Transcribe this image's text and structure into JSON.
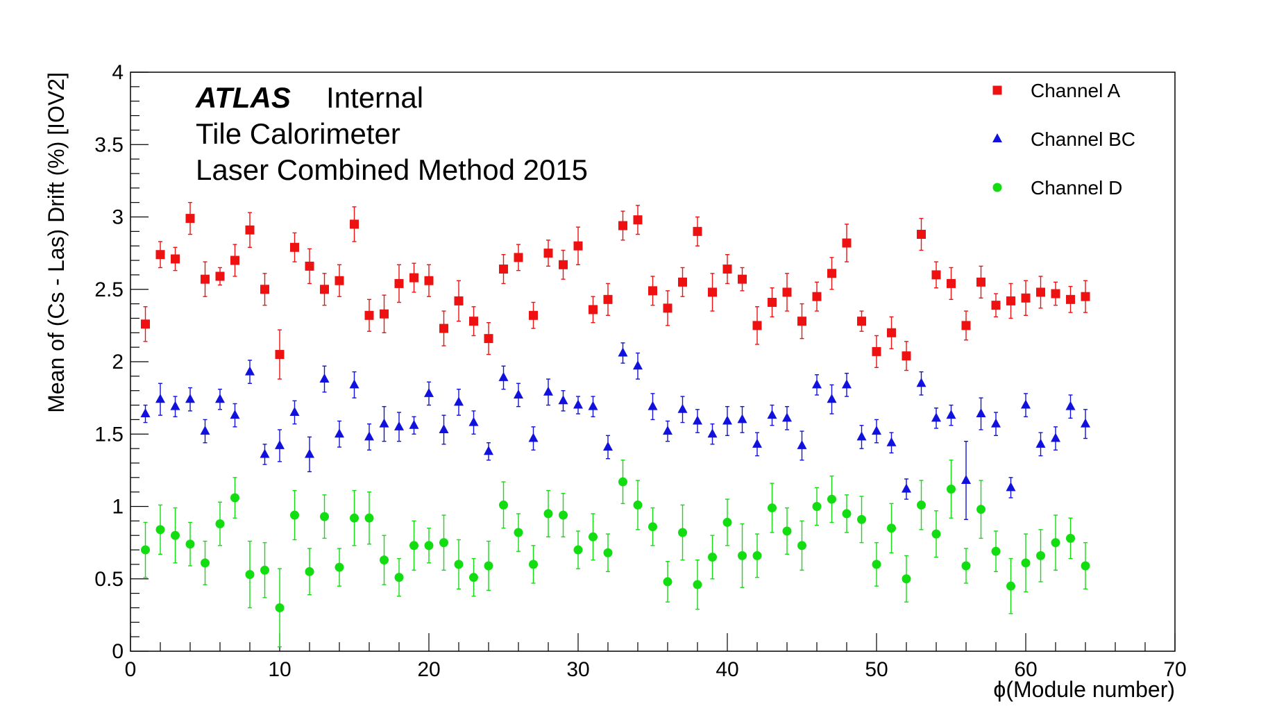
{
  "chart_data": {
    "type": "scatter",
    "title": "",
    "xlabel": "ϕ(Module number)",
    "ylabel": "Mean of (Cs - Las) Drift (%) [IOV2]",
    "xlim": [
      0,
      70
    ],
    "ylim": [
      0,
      4
    ],
    "x_ticks": [
      "0",
      "10",
      "20",
      "30",
      "40",
      "50",
      "60",
      "70"
    ],
    "y_ticks": [
      "0",
      "0.5",
      "1",
      "1.5",
      "2",
      "2.5",
      "3",
      "3.5",
      "4"
    ],
    "annotations": {
      "experiment": "ATLAS",
      "status": "Internal",
      "line2": "Tile Calorimeter",
      "line3": "Laser Combined Method 2015"
    },
    "legend_position": "top-right",
    "x": [
      1,
      2,
      3,
      4,
      5,
      6,
      7,
      8,
      9,
      10,
      11,
      12,
      13,
      14,
      15,
      16,
      17,
      18,
      19,
      20,
      21,
      22,
      23,
      24,
      25,
      26,
      27,
      28,
      29,
      30,
      31,
      32,
      33,
      34,
      35,
      36,
      37,
      38,
      39,
      40,
      41,
      42,
      43,
      44,
      45,
      46,
      47,
      48,
      49,
      50,
      51,
      52,
      53,
      54,
      55,
      56,
      57,
      58,
      59,
      60,
      61,
      62,
      63,
      64
    ],
    "series": [
      {
        "name": "Channel A",
        "color": "#ee1111",
        "marker": "square",
        "values": [
          2.26,
          2.74,
          2.71,
          2.99,
          2.57,
          2.59,
          2.7,
          2.91,
          2.5,
          2.05,
          2.79,
          2.66,
          2.5,
          2.56,
          2.95,
          2.32,
          2.33,
          2.54,
          2.58,
          2.56,
          2.23,
          2.42,
          2.28,
          2.16,
          2.64,
          2.72,
          2.32,
          2.75,
          2.67,
          2.8,
          2.36,
          2.43,
          2.94,
          2.98,
          2.49,
          2.37,
          2.55,
          2.9,
          2.48,
          2.64,
          2.57,
          2.25,
          2.41,
          2.48,
          2.28,
          2.45,
          2.61,
          2.82,
          2.28,
          2.07,
          2.2,
          2.04,
          2.88,
          2.6,
          2.54,
          2.25,
          2.55,
          2.39,
          2.42,
          2.44,
          2.48,
          2.47,
          2.43,
          2.45
        ],
        "errors": [
          0.12,
          0.09,
          0.08,
          0.11,
          0.12,
          0.06,
          0.11,
          0.12,
          0.11,
          0.17,
          0.1,
          0.12,
          0.11,
          0.11,
          0.12,
          0.11,
          0.13,
          0.13,
          0.1,
          0.11,
          0.12,
          0.14,
          0.1,
          0.11,
          0.1,
          0.09,
          0.09,
          0.09,
          0.1,
          0.13,
          0.09,
          0.11,
          0.1,
          0.1,
          0.1,
          0.12,
          0.1,
          0.1,
          0.13,
          0.1,
          0.08,
          0.13,
          0.1,
          0.13,
          0.12,
          0.1,
          0.11,
          0.13,
          0.07,
          0.11,
          0.11,
          0.1,
          0.11,
          0.09,
          0.11,
          0.1,
          0.11,
          0.08,
          0.12,
          0.12,
          0.11,
          0.08,
          0.09,
          0.11
        ]
      },
      {
        "name": "Channel BC",
        "color": "#1111dd",
        "marker": "triangle",
        "values": [
          1.64,
          1.74,
          1.69,
          1.74,
          1.52,
          1.74,
          1.63,
          1.93,
          1.36,
          1.42,
          1.65,
          1.36,
          1.88,
          1.5,
          1.84,
          1.48,
          1.57,
          1.55,
          1.56,
          1.78,
          1.53,
          1.72,
          1.58,
          1.38,
          1.89,
          1.77,
          1.47,
          1.79,
          1.73,
          1.7,
          1.69,
          1.41,
          2.06,
          1.97,
          1.69,
          1.52,
          1.67,
          1.59,
          1.5,
          1.59,
          1.6,
          1.43,
          1.63,
          1.61,
          1.42,
          1.84,
          1.74,
          1.84,
          1.48,
          1.52,
          1.44,
          1.12,
          1.85,
          1.61,
          1.63,
          1.18,
          1.64,
          1.57,
          1.13,
          1.7,
          1.43,
          1.47,
          1.69,
          1.57
        ],
        "errors": [
          0.06,
          0.11,
          0.07,
          0.08,
          0.08,
          0.07,
          0.08,
          0.08,
          0.07,
          0.11,
          0.08,
          0.12,
          0.09,
          0.09,
          0.09,
          0.09,
          0.12,
          0.1,
          0.06,
          0.08,
          0.1,
          0.09,
          0.08,
          0.06,
          0.08,
          0.08,
          0.08,
          0.09,
          0.07,
          0.06,
          0.07,
          0.08,
          0.07,
          0.09,
          0.09,
          0.07,
          0.09,
          0.08,
          0.07,
          0.1,
          0.09,
          0.08,
          0.07,
          0.08,
          0.1,
          0.07,
          0.1,
          0.08,
          0.08,
          0.08,
          0.07,
          0.07,
          0.08,
          0.07,
          0.07,
          0.27,
          0.11,
          0.08,
          0.07,
          0.08,
          0.08,
          0.08,
          0.08,
          0.1
        ]
      },
      {
        "name": "Channel D",
        "color": "#11dd11",
        "marker": "circle",
        "values": [
          0.7,
          0.84,
          0.8,
          0.74,
          0.61,
          0.88,
          1.06,
          0.53,
          0.56,
          0.3,
          0.94,
          0.55,
          0.93,
          0.58,
          0.92,
          0.92,
          0.63,
          0.51,
          0.73,
          0.73,
          0.75,
          0.6,
          0.51,
          0.59,
          1.01,
          0.82,
          0.6,
          0.95,
          0.94,
          0.7,
          0.79,
          0.68,
          1.17,
          1.01,
          0.86,
          0.48,
          0.82,
          0.46,
          0.65,
          0.89,
          0.66,
          0.66,
          0.99,
          0.83,
          0.73,
          1.0,
          1.05,
          0.95,
          0.91,
          0.6,
          0.85,
          0.5,
          1.01,
          0.81,
          1.12,
          0.59,
          0.98,
          0.69,
          0.45,
          0.61,
          0.66,
          0.75,
          0.78,
          0.59
        ],
        "errors": [
          0.19,
          0.17,
          0.19,
          0.15,
          0.15,
          0.15,
          0.14,
          0.23,
          0.19,
          0.27,
          0.17,
          0.16,
          0.15,
          0.13,
          0.19,
          0.18,
          0.17,
          0.13,
          0.17,
          0.12,
          0.19,
          0.17,
          0.13,
          0.17,
          0.16,
          0.13,
          0.13,
          0.16,
          0.15,
          0.13,
          0.16,
          0.13,
          0.15,
          0.17,
          0.13,
          0.14,
          0.19,
          0.17,
          0.15,
          0.16,
          0.22,
          0.15,
          0.17,
          0.16,
          0.17,
          0.13,
          0.16,
          0.13,
          0.16,
          0.15,
          0.17,
          0.16,
          0.17,
          0.16,
          0.2,
          0.12,
          0.2,
          0.14,
          0.19,
          0.2,
          0.18,
          0.19,
          0.14,
          0.16
        ]
      }
    ]
  }
}
